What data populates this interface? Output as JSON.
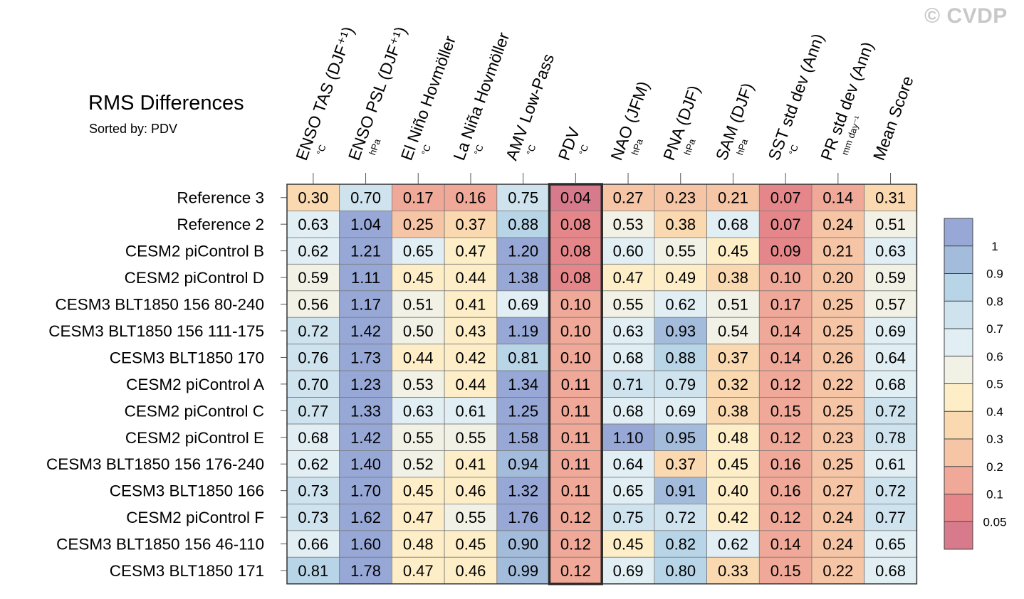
{
  "watermark": "© CVDP",
  "chart_data": {
    "type": "heatmap",
    "title": "RMS Differences",
    "subtitle": "Sorted by: PDV",
    "highlight_column": "PDV",
    "columns": [
      {
        "name": "ENSO TAS (DJF⁺¹)",
        "unit": "°C"
      },
      {
        "name": "ENSO PSL (DJF⁺¹)",
        "unit": "hPa"
      },
      {
        "name": "El Niño Hovmöller",
        "unit": "°C"
      },
      {
        "name": "La Niña Hovmöller",
        "unit": "°C"
      },
      {
        "name": "AMV Low-Pass",
        "unit": "°C"
      },
      {
        "name": "PDV",
        "unit": "°C"
      },
      {
        "name": "NAO (JFM)",
        "unit": "hPa"
      },
      {
        "name": "PNA (DJF)",
        "unit": "hPa"
      },
      {
        "name": "SAM (DJF)",
        "unit": "hPa"
      },
      {
        "name": "SST std dev (Ann)",
        "unit": "°C"
      },
      {
        "name": "PR std dev (Ann)",
        "unit": "mm day⁻¹"
      },
      {
        "name": "Mean Score",
        "unit": ""
      }
    ],
    "rows": [
      {
        "label": "Reference 3",
        "values": [
          "0.30",
          "0.70",
          "0.17",
          "0.16",
          "0.75",
          "0.04",
          "0.27",
          "0.23",
          "0.21",
          "0.07",
          "0.14",
          "0.31"
        ]
      },
      {
        "label": "Reference 2",
        "values": [
          "0.63",
          "1.04",
          "0.25",
          "0.37",
          "0.88",
          "0.08",
          "0.53",
          "0.38",
          "0.68",
          "0.07",
          "0.24",
          "0.51"
        ]
      },
      {
        "label": "CESM2 piControl B",
        "values": [
          "0.62",
          "1.21",
          "0.65",
          "0.47",
          "1.20",
          "0.08",
          "0.60",
          "0.55",
          "0.45",
          "0.09",
          "0.21",
          "0.63"
        ]
      },
      {
        "label": "CESM2 piControl D",
        "values": [
          "0.59",
          "1.11",
          "0.45",
          "0.44",
          "1.38",
          "0.08",
          "0.47",
          "0.49",
          "0.38",
          "0.10",
          "0.20",
          "0.59"
        ]
      },
      {
        "label": "CESM3 BLT1850 156 80-240",
        "values": [
          "0.56",
          "1.17",
          "0.51",
          "0.41",
          "0.69",
          "0.10",
          "0.55",
          "0.62",
          "0.51",
          "0.17",
          "0.25",
          "0.57"
        ]
      },
      {
        "label": "CESM3 BLT1850 156 111-175",
        "values": [
          "0.72",
          "1.42",
          "0.50",
          "0.43",
          "1.19",
          "0.10",
          "0.63",
          "0.93",
          "0.54",
          "0.14",
          "0.25",
          "0.69"
        ]
      },
      {
        "label": "CESM3 BLT1850 170",
        "values": [
          "0.76",
          "1.73",
          "0.44",
          "0.42",
          "0.81",
          "0.10",
          "0.68",
          "0.88",
          "0.37",
          "0.14",
          "0.26",
          "0.64"
        ]
      },
      {
        "label": "CESM2 piControl A",
        "values": [
          "0.70",
          "1.23",
          "0.53",
          "0.44",
          "1.34",
          "0.11",
          "0.71",
          "0.79",
          "0.32",
          "0.12",
          "0.22",
          "0.68"
        ]
      },
      {
        "label": "CESM2 piControl C",
        "values": [
          "0.77",
          "1.33",
          "0.63",
          "0.61",
          "1.25",
          "0.11",
          "0.68",
          "0.69",
          "0.38",
          "0.15",
          "0.25",
          "0.72"
        ]
      },
      {
        "label": "CESM2 piControl E",
        "values": [
          "0.68",
          "1.42",
          "0.55",
          "0.55",
          "1.58",
          "0.11",
          "1.10",
          "0.95",
          "0.48",
          "0.12",
          "0.23",
          "0.78"
        ]
      },
      {
        "label": "CESM3 BLT1850 156 176-240",
        "values": [
          "0.62",
          "1.40",
          "0.52",
          "0.41",
          "0.94",
          "0.11",
          "0.64",
          "0.37",
          "0.45",
          "0.16",
          "0.25",
          "0.61"
        ]
      },
      {
        "label": "CESM3 BLT1850 166",
        "values": [
          "0.73",
          "1.70",
          "0.45",
          "0.46",
          "1.32",
          "0.11",
          "0.65",
          "0.91",
          "0.40",
          "0.16",
          "0.27",
          "0.72"
        ]
      },
      {
        "label": "CESM2 piControl F",
        "values": [
          "0.73",
          "1.62",
          "0.47",
          "0.55",
          "1.76",
          "0.12",
          "0.75",
          "0.72",
          "0.42",
          "0.12",
          "0.24",
          "0.77"
        ]
      },
      {
        "label": "CESM3 BLT1850 156 46-110",
        "values": [
          "0.66",
          "1.60",
          "0.48",
          "0.45",
          "0.90",
          "0.12",
          "0.45",
          "0.82",
          "0.62",
          "0.14",
          "0.24",
          "0.65"
        ]
      },
      {
        "label": "CESM3 BLT1850 171",
        "values": [
          "0.81",
          "1.78",
          "0.47",
          "0.46",
          "0.99",
          "0.12",
          "0.69",
          "0.80",
          "0.33",
          "0.15",
          "0.22",
          "0.68"
        ]
      }
    ],
    "colorbar": {
      "levels": [
        0.05,
        0.1,
        0.2,
        0.3,
        0.4,
        0.5,
        0.6,
        0.7,
        0.8,
        0.9,
        1
      ],
      "tick_labels": [
        "0.05",
        "0.1",
        "0.2",
        "0.3",
        "0.4",
        "0.5",
        "0.6",
        "0.7",
        "0.8",
        "0.9",
        "1"
      ],
      "colors": [
        "#d77b8c",
        "#e5878a",
        "#f0a898",
        "#f6c5a5",
        "#fad9b0",
        "#fdeec7",
        "#f2f1e6",
        "#e1eef3",
        "#cfe3ee",
        "#b8d5e8",
        "#a3bcdc",
        "#97a8d6"
      ]
    }
  }
}
